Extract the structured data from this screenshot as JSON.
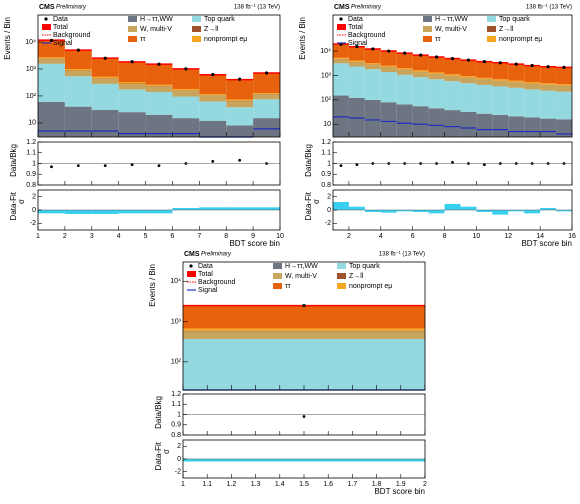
{
  "chart_data": [
    {
      "type": "stacked_bar",
      "cms": "CMS",
      "preliminary": "Preliminary",
      "lumi": "138 fb⁻¹ (13 TeV)",
      "ylabel": "Events / Bin",
      "ratio_label": "Data/Bkg",
      "pull_label": "Data-Fit",
      "pull_sigma": "σ",
      "xlabel": "BDT score bin",
      "total_label": "Total",
      "background_label": "Background",
      "xlim": [
        1,
        10
      ],
      "xticks": [
        1,
        2,
        3,
        4,
        5,
        6,
        7,
        8,
        9,
        10
      ],
      "ylim": [
        3,
        100000
      ],
      "yticks": [
        10,
        {
          "value": 100,
          "label": "10²"
        },
        {
          "value": 1000,
          "label": "10³"
        },
        {
          "value": 10000,
          "label": "10⁴"
        }
      ],
      "log_y": true,
      "ratio_lim": [
        0.8,
        1.2
      ],
      "ratio_ticks": [
        0.8,
        0.9,
        1,
        1.1,
        1.2
      ],
      "pull_lim": [
        -3,
        3
      ],
      "pull_ticks": [
        -2,
        0,
        2
      ],
      "series": [
        {
          "name": "H→ττ,WW",
          "color": "#6e7582",
          "values": [
            60,
            40,
            30,
            25,
            20,
            15,
            12,
            8,
            15
          ]
        },
        {
          "name": "W, multi-V",
          "color": "#c8a45c",
          "values": [
            800,
            300,
            150,
            100,
            80,
            60,
            40,
            25,
            40
          ]
        },
        {
          "name": "ττ",
          "color": "#e8620e",
          "values": [
            9000,
            4000,
            2000,
            1500,
            1250,
            830,
            490,
            330,
            580
          ]
        },
        {
          "name": "Top quark",
          "color": "#94d8e0",
          "values": [
            1500,
            500,
            250,
            150,
            120,
            80,
            50,
            30,
            60
          ]
        },
        {
          "name": "Z→ll",
          "color": "#a0522d",
          "values": [
            60,
            30,
            20,
            12,
            10,
            6,
            4,
            3,
            3
          ]
        },
        {
          "name": "nonprompt eμ",
          "color": "#f5a623",
          "values": [
            300,
            120,
            60,
            40,
            30,
            20,
            12,
            8,
            10
          ]
        }
      ],
      "data": {
        "name": "Data",
        "values": [
          11500,
          5000,
          2500,
          1850,
          1500,
          1010,
          620,
          415,
          710
        ]
      },
      "signal": {
        "name": "Signal",
        "color": "#1f2fbf",
        "values": [
          5,
          5,
          5,
          4,
          4,
          4,
          3,
          3,
          6
        ]
      },
      "ratio": [
        0.97,
        0.98,
        0.98,
        0.99,
        0.98,
        1.0,
        1.02,
        1.03,
        1.0
      ],
      "pull": [
        -0.5,
        -0.6,
        -0.6,
        -0.5,
        -0.5,
        0.3,
        0.4,
        0.4,
        0.4
      ],
      "pull_color": "#38d0f0"
    },
    {
      "type": "stacked_bar",
      "cms": "CMS",
      "preliminary": "Preliminary",
      "lumi": "138 fb⁻¹ (13 TeV)",
      "ylabel": "Events / Bin",
      "ratio_label": "Data/Bkg",
      "pull_label": "Data-Fit",
      "pull_sigma": "σ",
      "xlabel": "BDT score bin",
      "total_label": "Total",
      "background_label": "Background",
      "xlim": [
        1,
        16
      ],
      "xticks": [
        2,
        4,
        6,
        8,
        10,
        12,
        14,
        16
      ],
      "ylim": [
        3,
        300000
      ],
      "yticks": [
        10,
        {
          "value": 100,
          "label": "10²"
        },
        {
          "value": 1000,
          "label": "10³"
        },
        {
          "value": 10000,
          "label": "10⁴"
        }
      ],
      "log_y": true,
      "ratio_lim": [
        0.8,
        1.2
      ],
      "ratio_ticks": [
        0.8,
        0.9,
        1,
        1.1,
        1.2
      ],
      "pull_lim": [
        -3,
        3
      ],
      "pull_ticks": [
        -2,
        0,
        2
      ],
      "series": [
        {
          "name": "H→ττ,WW",
          "color": "#6e7582",
          "values": [
            150,
            120,
            100,
            80,
            65,
            55,
            45,
            38,
            32,
            27,
            24,
            21,
            19,
            17,
            16
          ]
        },
        {
          "name": "W, multi-V",
          "color": "#c8a45c",
          "values": [
            1500,
            1200,
            950,
            780,
            640,
            530,
            440,
            370,
            320,
            280,
            240,
            210,
            190,
            170,
            160
          ]
        },
        {
          "name": "ττ",
          "color": "#e8620e",
          "values": [
            14000,
            11000,
            9000,
            7500,
            6200,
            5200,
            4400,
            3800,
            3300,
            2900,
            2600,
            2300,
            2000,
            1800,
            1700
          ]
        },
        {
          "name": "Top quark",
          "color": "#94d8e0",
          "values": [
            3000,
            2200,
            1700,
            1300,
            1000,
            800,
            650,
            540,
            450,
            380,
            330,
            290,
            250,
            220,
            200
          ]
        },
        {
          "name": "Z→ll",
          "color": "#a0522d",
          "values": [
            100,
            80,
            60,
            50,
            40,
            32,
            26,
            22,
            18,
            15,
            13,
            11,
            10,
            9,
            8
          ]
        },
        {
          "name": "nonprompt eμ",
          "color": "#f5a623",
          "values": [
            600,
            480,
            380,
            300,
            240,
            200,
            170,
            140,
            120,
            100,
            90,
            80,
            70,
            62,
            56
          ]
        }
      ],
      "data": {
        "name": "Data",
        "values": [
          19000,
          15200,
          12200,
          10000,
          8200,
          6800,
          5700,
          4900,
          4250,
          3700,
          3300,
          2900,
          2550,
          2280,
          2150
        ]
      },
      "signal": {
        "name": "Signal",
        "color": "#1f2fbf",
        "values": [
          20,
          18,
          15,
          13,
          11,
          10,
          9,
          8,
          7,
          6,
          6,
          5,
          5,
          5,
          4
        ]
      },
      "ratio": [
        0.98,
        0.99,
        1.0,
        1.0,
        1.0,
        1.0,
        1.0,
        1.01,
        1.0,
        0.99,
        1.0,
        1.0,
        1.0,
        1.0,
        1.0
      ],
      "pull": [
        1.2,
        0.5,
        -0.3,
        -0.4,
        -0.2,
        -0.3,
        -0.5,
        0.9,
        0.5,
        -0.3,
        -0.7,
        -0.2,
        -0.5,
        0.3,
        -0.2
      ],
      "pull_color": "#38d0f0"
    },
    {
      "type": "stacked_bar",
      "cms": "CMS",
      "preliminary": "Preliminary",
      "lumi": "138 fb⁻¹ (13 TeV)",
      "ylabel": "Events / Bin",
      "ratio_label": "Data/Bkg",
      "pull_label": "Data-Fit",
      "pull_sigma": "σ",
      "xlabel": "BDT score bin",
      "total_label": "Total",
      "background_label": "Background",
      "xlim": [
        1,
        2
      ],
      "xticks": [
        1,
        1.1,
        1.2,
        1.3,
        1.4,
        1.5,
        1.6,
        1.7,
        1.8,
        1.9,
        2
      ],
      "ylim": [
        20,
        30000
      ],
      "yticks": [
        {
          "value": 100,
          "label": "10²"
        },
        {
          "value": 1000,
          "label": "10³"
        },
        {
          "value": 10000,
          "label": "10⁴"
        }
      ],
      "log_y": true,
      "ratio_lim": [
        0.8,
        1.2
      ],
      "ratio_ticks": [
        0.8,
        0.9,
        1,
        1.1,
        1.2
      ],
      "pull_lim": [
        -3,
        3
      ],
      "pull_ticks": [
        -2,
        0,
        2
      ],
      "series": [
        {
          "name": "H→ττ,WW",
          "color": "#6e7582",
          "values": [
            20
          ]
        },
        {
          "name": "W, multi-V",
          "color": "#c8a45c",
          "values": [
            200
          ]
        },
        {
          "name": "ττ",
          "color": "#e8620e",
          "values": [
            1800
          ]
        },
        {
          "name": "Top quark",
          "color": "#94d8e0",
          "values": [
            350
          ]
        },
        {
          "name": "Z→ll",
          "color": "#a0522d",
          "values": [
            15
          ]
        },
        {
          "name": "nonprompt eμ",
          "color": "#f5a623",
          "values": [
            90
          ]
        }
      ],
      "data": {
        "name": "Data",
        "values": [
          2500
        ]
      },
      "signal": {
        "name": "Signal",
        "color": "#1f2fbf",
        "values": [
          10
        ]
      },
      "ratio": [
        0.98
      ],
      "pull": [
        -0.4
      ],
      "pull_color": "#38d0f0"
    }
  ]
}
